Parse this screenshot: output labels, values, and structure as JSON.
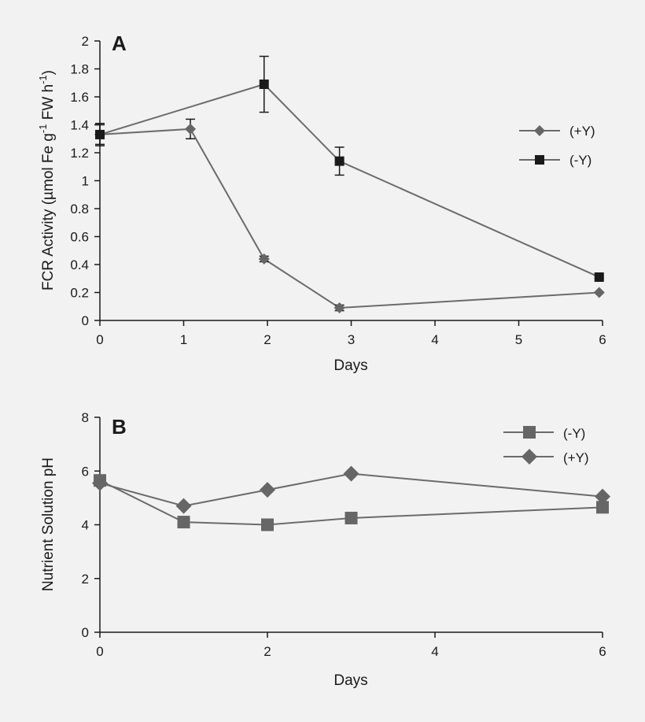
{
  "colors": {
    "background": "#f2f2f2",
    "axis": "#1a1a1a",
    "lineA": "#6b6b6b",
    "markerDark": "#1a1a1a",
    "markerGray": "#666666"
  },
  "chart_data": [
    {
      "type": "line",
      "panel": "A",
      "xlabel": "Days",
      "ylabel": {
        "prefix": "FCR Activity (µmol Fe g",
        "sup1": "-1",
        "middle": " FW h",
        "sup2": "-1",
        "suffix": ")"
      },
      "xlim": [
        0,
        6
      ],
      "ylim": [
        0,
        2
      ],
      "xticks": [
        0,
        1,
        2,
        3,
        4,
        5,
        6
      ],
      "yticks": [
        0,
        0.2,
        0.4,
        0.6,
        0.8,
        1,
        1.2,
        1.4,
        1.6,
        1.8,
        2
      ],
      "yticklabels": [
        "0",
        "0.2",
        "0.4",
        "0.6",
        "0.8",
        "1",
        "1.2",
        "1.4",
        "1.6",
        "1.8",
        "2"
      ],
      "legend_position": "right",
      "series": [
        {
          "name": "(+Y)",
          "marker": "diamond",
          "x": [
            0,
            1.08,
            1.96,
            2.86,
            5.96
          ],
          "y": [
            1.33,
            1.37,
            0.44,
            0.09,
            0.2
          ],
          "err": [
            0.07,
            0.07,
            0.02,
            0.02,
            0.0
          ]
        },
        {
          "name": "(-Y)",
          "marker": "square",
          "x": [
            0,
            1.96,
            2.86,
            5.96
          ],
          "y": [
            1.33,
            1.69,
            1.14,
            0.31
          ],
          "err": [
            0.08,
            0.2,
            0.1,
            0.01
          ]
        }
      ]
    },
    {
      "type": "line",
      "panel": "B",
      "xlabel": "Days",
      "ylabel": "Nutrient Solution pH",
      "xlim": [
        0,
        6
      ],
      "ylim": [
        0,
        8
      ],
      "xticks": [
        0,
        2,
        4,
        6
      ],
      "yticks": [
        0,
        2,
        4,
        6,
        8
      ],
      "yticklabels": [
        "0",
        "2",
        "4",
        "6",
        "8"
      ],
      "legend_position": "top-right",
      "series": [
        {
          "name": "(-Y)",
          "marker": "square",
          "x": [
            0,
            1,
            2,
            3,
            6
          ],
          "y": [
            5.65,
            4.1,
            4.0,
            4.25,
            4.65
          ]
        },
        {
          "name": "(+Y)",
          "marker": "diamond",
          "x": [
            0,
            1,
            2,
            3,
            6
          ],
          "y": [
            5.55,
            4.7,
            5.3,
            5.9,
            5.05
          ]
        }
      ]
    }
  ]
}
